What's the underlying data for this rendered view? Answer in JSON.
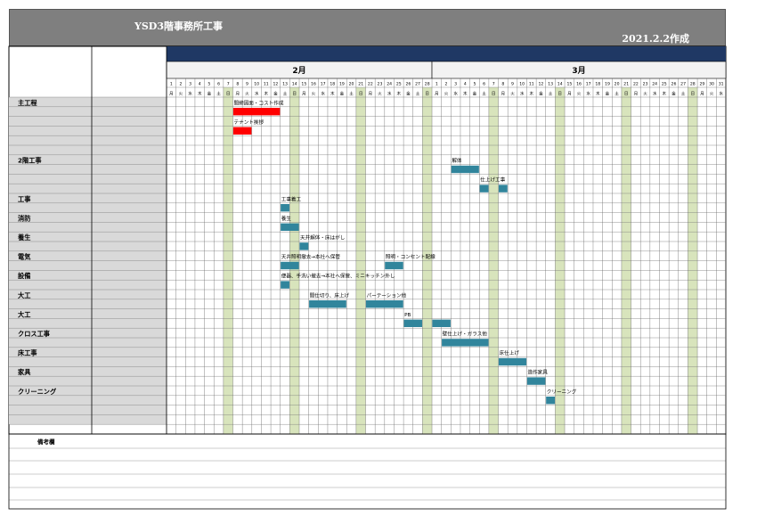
{
  "title": "YSD3階事務所工事",
  "created": "2021.2.2作成",
  "months": [
    {
      "label": "2月",
      "days": 28,
      "start_weekday": 1
    },
    {
      "label": "3月",
      "days": 31,
      "start_weekday": 1
    }
  ],
  "weekday_names": [
    "日",
    "月",
    "火",
    "水",
    "木",
    "金",
    "土"
  ],
  "colors": {
    "header_bg": "#7f7f7f",
    "band": "#1f3864",
    "weekend": "#d8e4bc",
    "bar_teal": "#31859c",
    "bar_red": "#ff0000",
    "label_bg": "#d9d9d9"
  },
  "sections": [
    {
      "label": "主工程",
      "row": 0
    },
    {
      "label": "2階工事",
      "row": 6
    },
    {
      "label": "工事",
      "row": 10
    },
    {
      "label": "消防",
      "row": 12
    },
    {
      "label": "養生",
      "row": 14
    },
    {
      "label": "電気",
      "row": 16
    },
    {
      "label": "設備",
      "row": 18
    },
    {
      "label": "大工",
      "row": 20
    },
    {
      "label": "大工",
      "row": 22
    },
    {
      "label": "クロス工事",
      "row": 24
    },
    {
      "label": "床工事",
      "row": 26
    },
    {
      "label": "家具",
      "row": 28
    },
    {
      "label": "クリーニング",
      "row": 30
    }
  ],
  "tasks": [
    {
      "label": "間締図面・コスト作成",
      "row": 0,
      "color": "red",
      "bars": [
        [
          8,
          12
        ]
      ]
    },
    {
      "label": "テナント挨拶",
      "row": 2,
      "color": "red",
      "bars": [
        [
          8,
          9
        ]
      ]
    },
    {
      "label": "解体",
      "row": 6,
      "color": "teal",
      "bars": [
        [
          31,
          33
        ]
      ]
    },
    {
      "label": "仕上げ工事",
      "row": 8,
      "color": "teal",
      "bars": [
        [
          34,
          34
        ],
        [
          36,
          36
        ]
      ]
    },
    {
      "label": "工事着工",
      "row": 10,
      "color": "teal",
      "bars": [
        [
          13,
          13
        ]
      ]
    },
    {
      "label": "養生",
      "row": 12,
      "color": "teal",
      "bars": [
        [
          13,
          14
        ]
      ]
    },
    {
      "label": "天井解体・床はがし",
      "row": 14,
      "color": "teal",
      "bars": [
        [
          15,
          15
        ]
      ]
    },
    {
      "label": "天井照明撤去→本社へ保管",
      "row": 16,
      "color": "teal",
      "bars": [
        [
          13,
          14
        ]
      ]
    },
    {
      "label": "照明・コンセント配線",
      "row": 16,
      "color": "teal",
      "bars": [
        [
          24,
          25
        ]
      ]
    },
    {
      "label": "便器、手洗い撤去→本社へ保管、ミニキッチン外し",
      "row": 18,
      "color": "teal",
      "bars": [
        [
          13,
          13
        ]
      ]
    },
    {
      "label": "間仕切り、床上げ",
      "row": 20,
      "color": "teal",
      "bars": [
        [
          16,
          19
        ]
      ]
    },
    {
      "label": "パーテーション他",
      "row": 20,
      "color": "teal",
      "bars": [
        [
          22,
          25
        ]
      ]
    },
    {
      "label": "PB",
      "row": 22,
      "color": "teal",
      "bars": [
        [
          26,
          27
        ]
      ]
    },
    {
      "label": "",
      "row": 22,
      "color": "teal",
      "bars": [
        [
          29,
          30
        ]
      ]
    },
    {
      "label": "壁仕上げ・ガラス他",
      "row": 24,
      "color": "teal",
      "bars": [
        [
          30,
          34
        ]
      ]
    },
    {
      "label": "床仕上げ",
      "row": 26,
      "color": "teal",
      "bars": [
        [
          36,
          38
        ]
      ]
    },
    {
      "label": "造作家具",
      "row": 28,
      "color": "teal",
      "bars": [
        [
          39,
          40
        ]
      ]
    },
    {
      "label": "クリーニング",
      "row": 30,
      "color": "teal",
      "bars": [
        [
          41,
          41
        ]
      ]
    }
  ],
  "remarks_label": "備考欄"
}
